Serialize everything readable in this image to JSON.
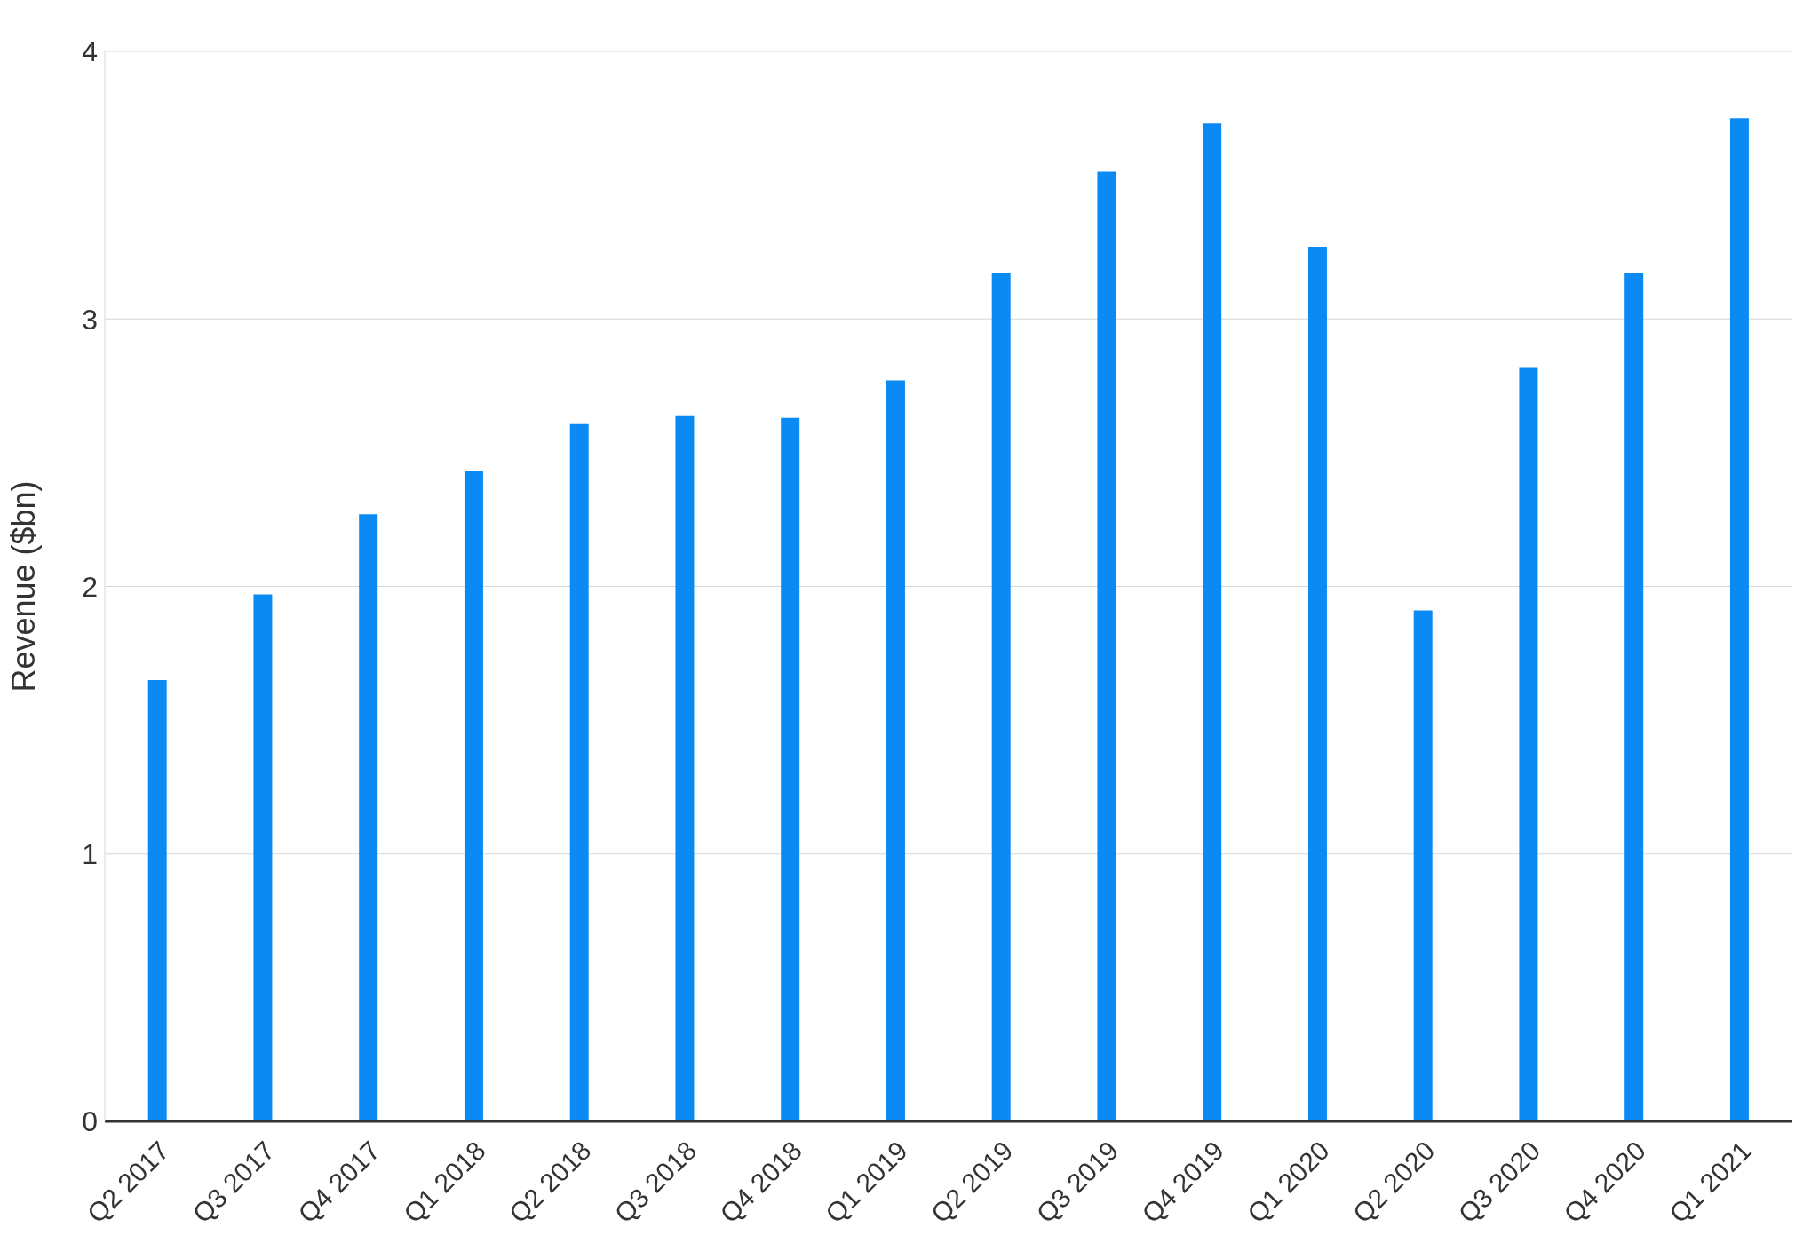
{
  "chart_data": {
    "type": "bar",
    "ylabel": "Revenue ($bn)",
    "categories": [
      "Q2 2017",
      "Q3 2017",
      "Q4 2017",
      "Q1 2018",
      "Q2 2018",
      "Q3 2018",
      "Q4 2018",
      "Q1 2019",
      "Q2 2019",
      "Q3 2019",
      "Q4 2019",
      "Q1 2020",
      "Q2 2020",
      "Q3 2020",
      "Q4 2020",
      "Q1 2021"
    ],
    "values": [
      1.65,
      1.97,
      2.27,
      2.43,
      2.61,
      2.64,
      2.63,
      2.77,
      3.17,
      3.55,
      3.73,
      3.27,
      1.91,
      2.82,
      3.17,
      3.75
    ],
    "color": "#0b8af3",
    "ylim": [
      0,
      4
    ],
    "yticks": [
      0,
      1,
      2,
      3,
      4
    ],
    "grid": "y",
    "legend": false
  }
}
